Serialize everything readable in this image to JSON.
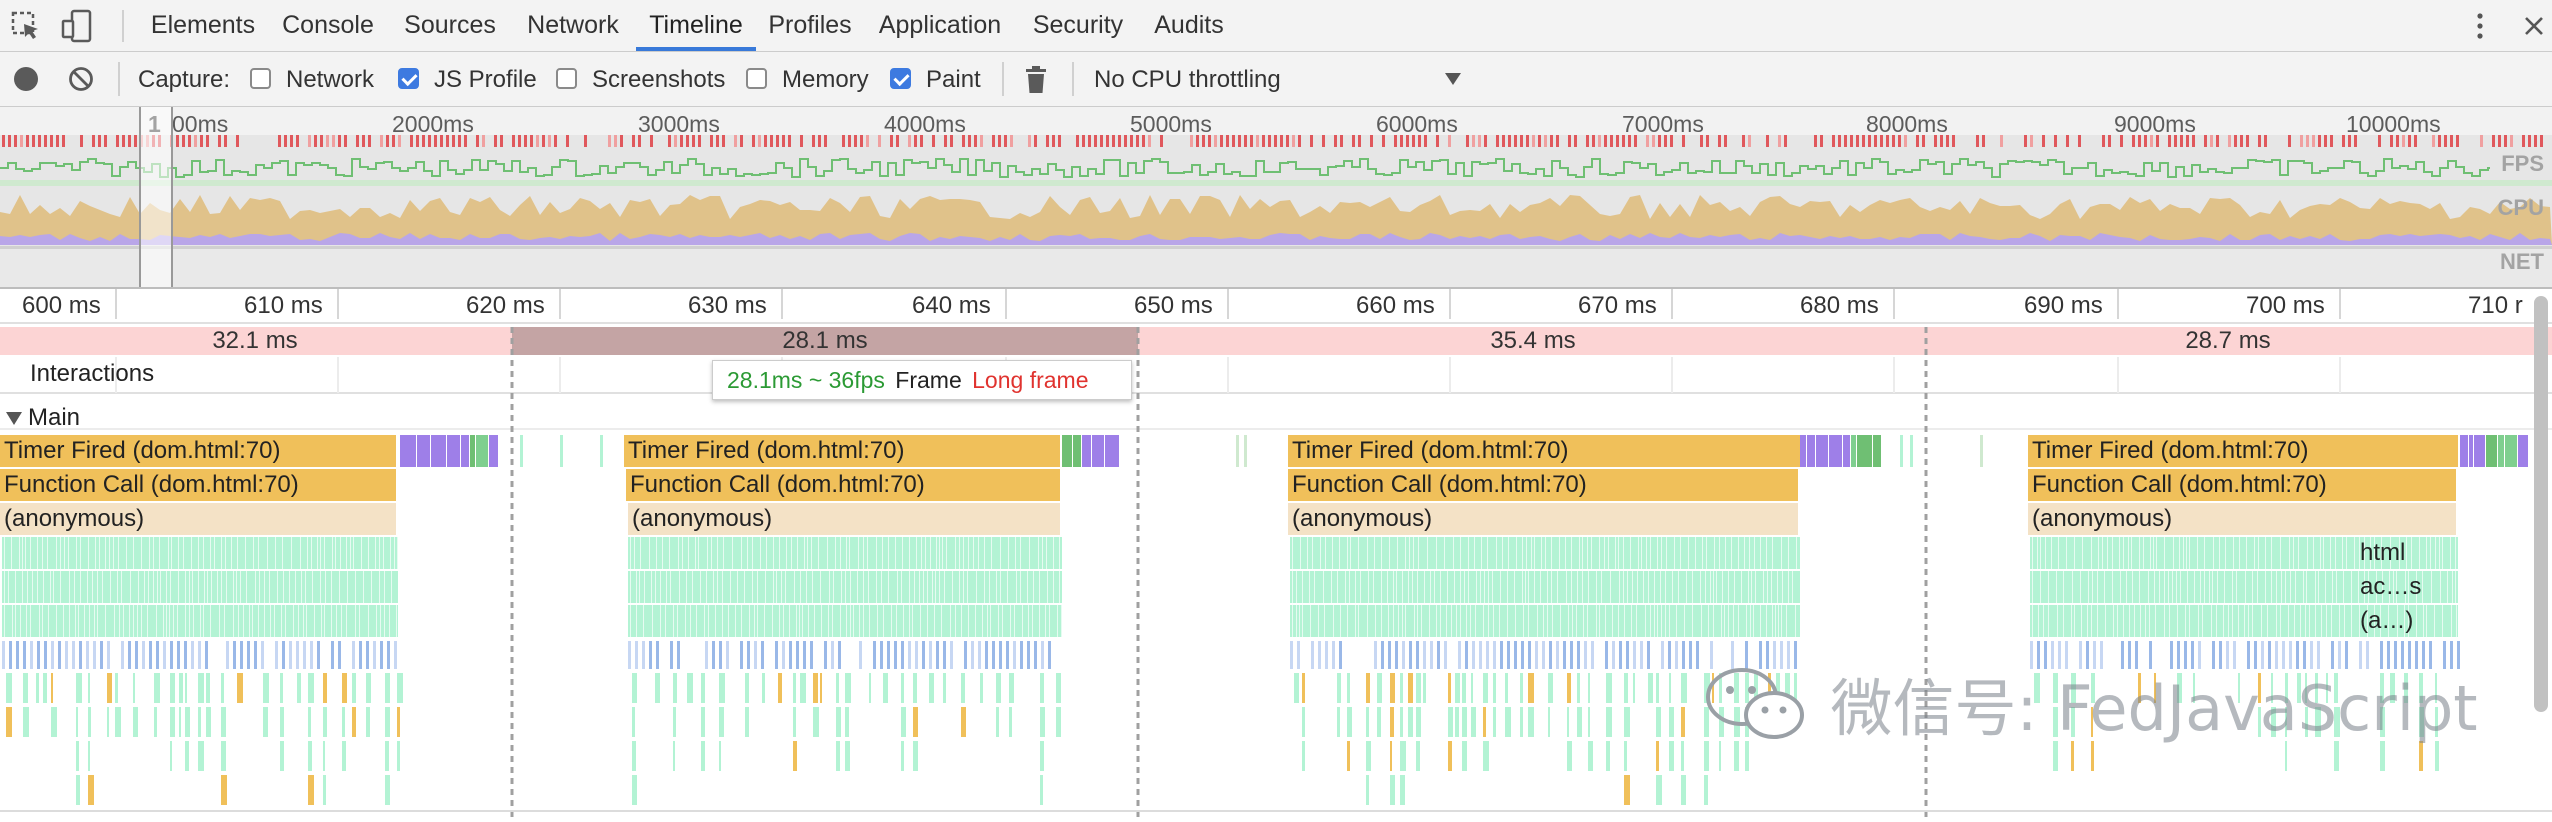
{
  "tabs": [
    {
      "label": "Elements",
      "active": false
    },
    {
      "label": "Console",
      "active": false
    },
    {
      "label": "Sources",
      "active": false
    },
    {
      "label": "Network",
      "active": false
    },
    {
      "label": "Timeline",
      "active": true
    },
    {
      "label": "Profiles",
      "active": false
    },
    {
      "label": "Application",
      "active": false
    },
    {
      "label": "Security",
      "active": false
    },
    {
      "label": "Audits",
      "active": false
    }
  ],
  "toolbar": {
    "capture_label": "Capture:",
    "options": [
      {
        "label": "Network",
        "checked": false
      },
      {
        "label": "JS Profile",
        "checked": true
      },
      {
        "label": "Screenshots",
        "checked": false
      },
      {
        "label": "Memory",
        "checked": false
      },
      {
        "label": "Paint",
        "checked": true
      }
    ],
    "throttling": "No CPU throttling"
  },
  "overview": {
    "ticks": [
      "1",
      "00ms",
      "2000ms",
      "3000ms",
      "4000ms",
      "5000ms",
      "6000ms",
      "7000ms",
      "8000ms",
      "9000ms",
      "10000ms"
    ],
    "labels": [
      "FPS",
      "CPU",
      "NET"
    ]
  },
  "timeline": {
    "ticks": [
      "600 ms",
      "610 ms",
      "620 ms",
      "630 ms",
      "640 ms",
      "650 ms",
      "660 ms",
      "670 ms",
      "680 ms",
      "690 ms",
      "700 ms",
      "710 r"
    ],
    "frames": [
      "32.1 ms",
      "28.1 ms",
      "35.4 ms",
      "28.7 ms"
    ],
    "interactions_label": "Interactions",
    "tooltip": {
      "fps": "28.1ms ~ 36fps",
      "frame": "Frame",
      "warning": "Long frame"
    },
    "main_label": "Main"
  },
  "flame": {
    "timer": "Timer Fired (dom.html:70)",
    "call": "Function Call (dom.html:70)",
    "anon": "(anonymous)",
    "extra": [
      "html",
      "ac…s",
      "(a…)"
    ]
  },
  "watermark": {
    "text": "微信号: FedJavaScript"
  },
  "colors": {
    "accent": "#3879d9",
    "script": "#f0c05a",
    "render": "#9e7fe8",
    "paint": "#6fbf73",
    "frame_bg": "#fcd4d4",
    "frame_selected": "#c4a4a4",
    "long_frame": "#e0332f",
    "fps_text": "#2b9a34"
  }
}
